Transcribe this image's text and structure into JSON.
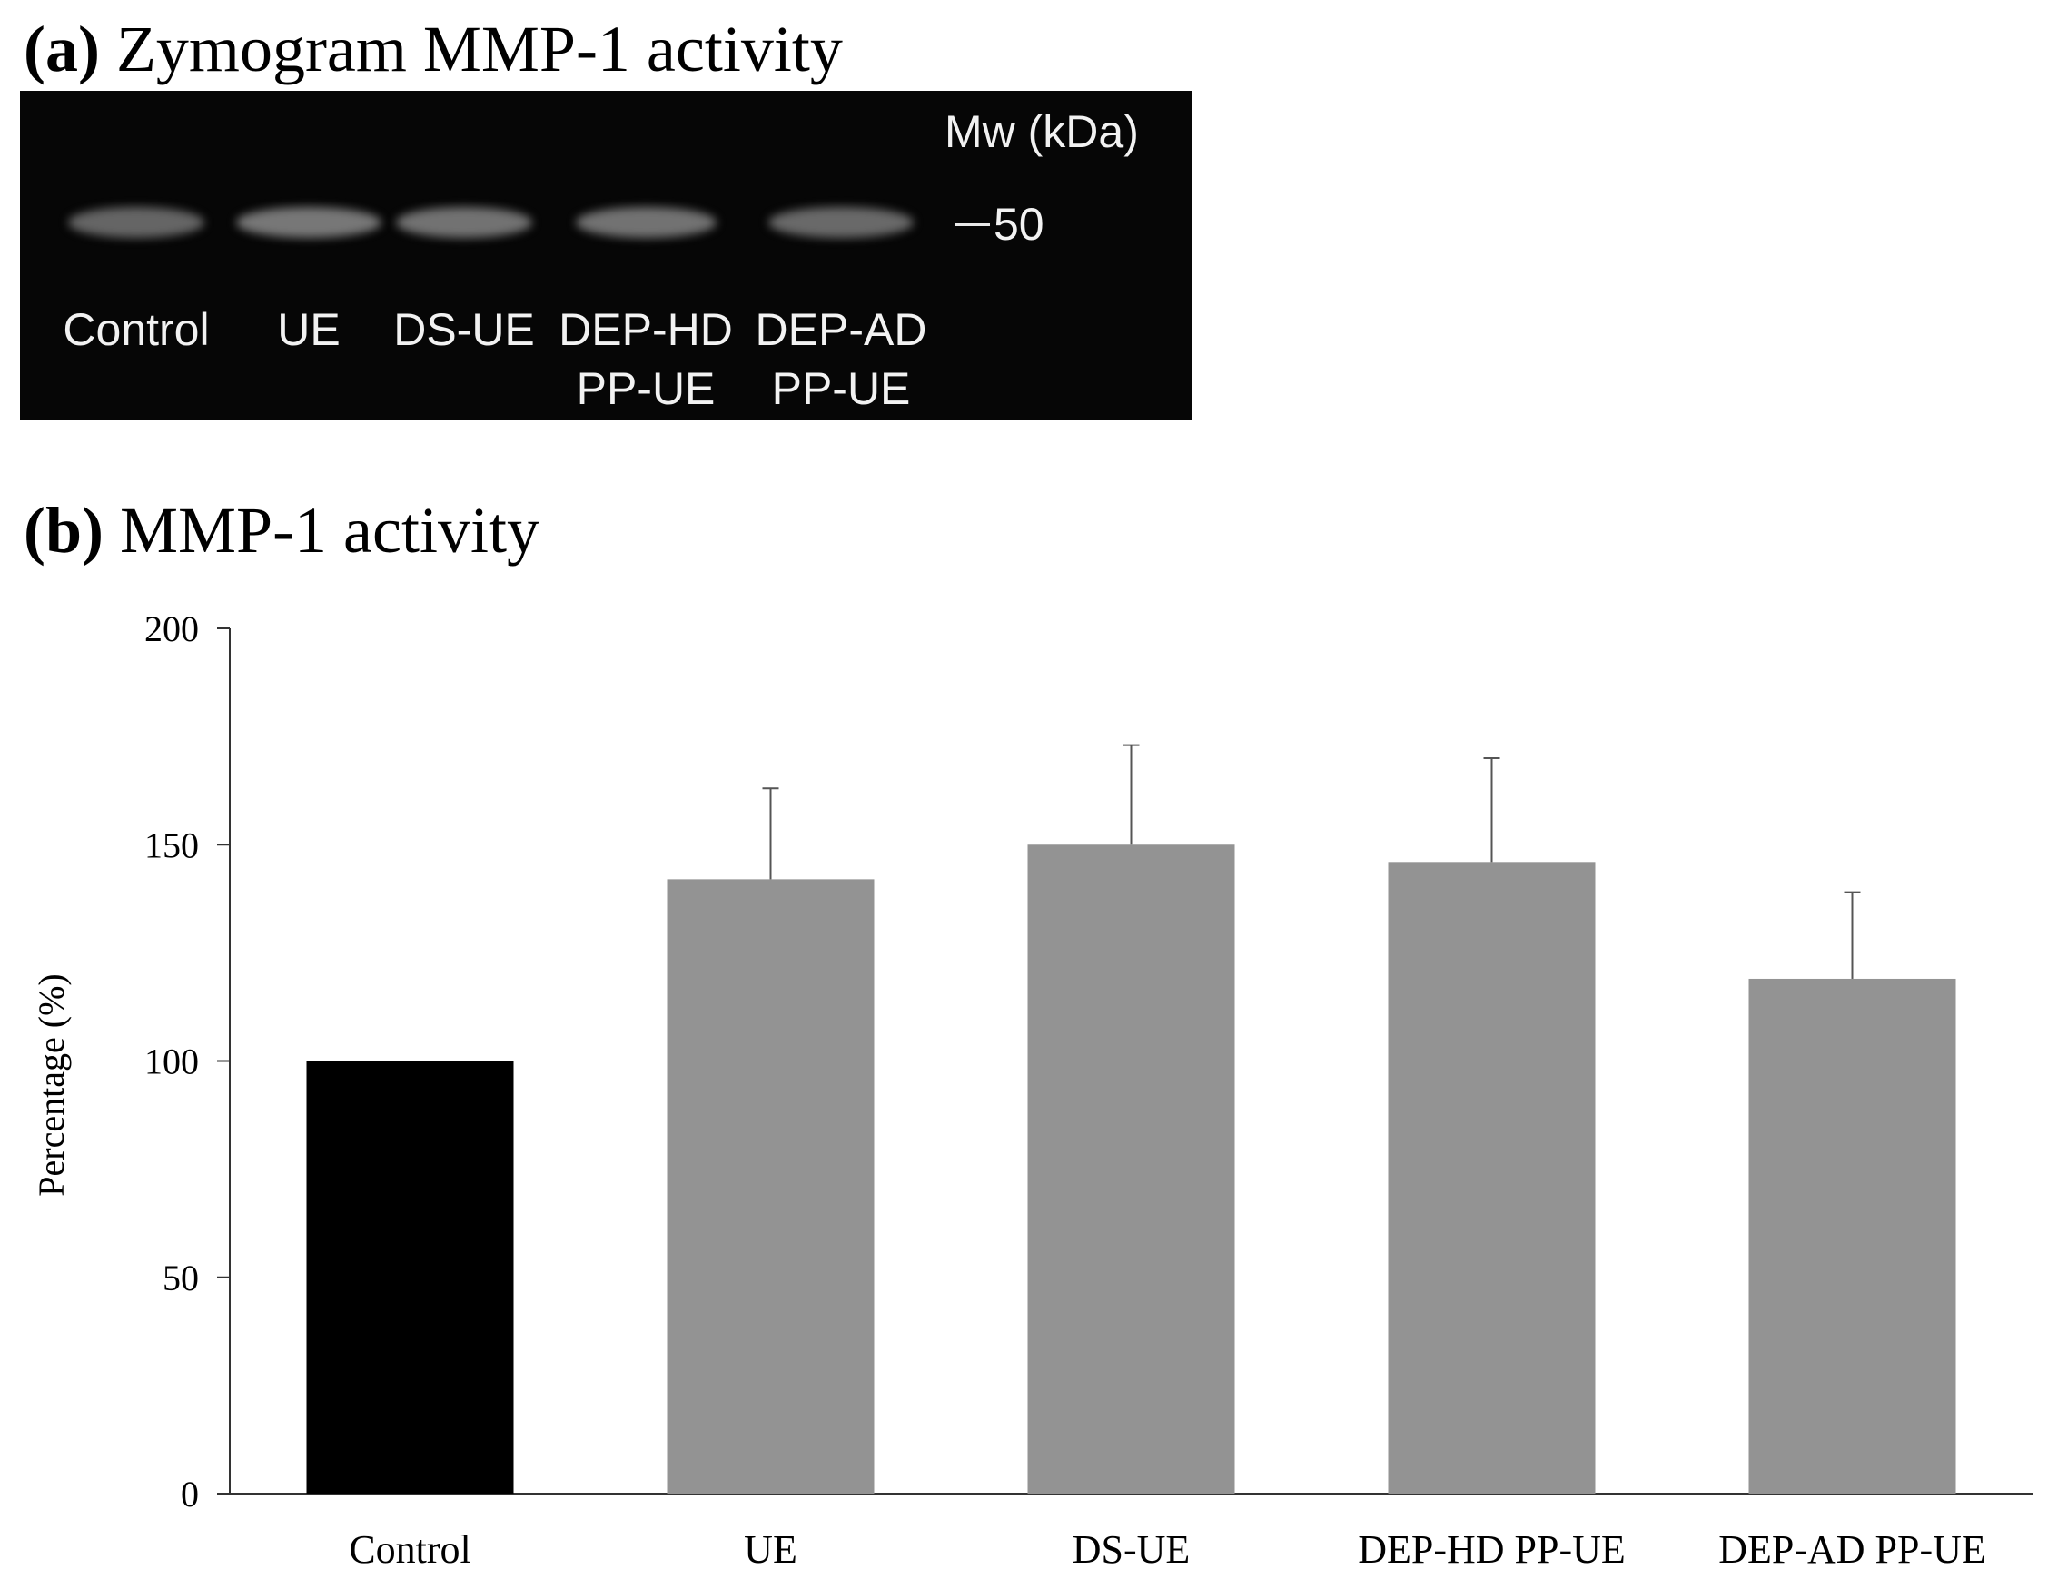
{
  "panel_a": {
    "label": "(a)",
    "title": "Zymogram MMP-1 activity",
    "mw_label": "Mw (kDa)",
    "mw_marker": "50",
    "lanes": [
      {
        "line1": "Control",
        "line2": "",
        "intensity": 0.45
      },
      {
        "line1": "UE",
        "line2": "",
        "intensity": 0.65
      },
      {
        "line1": "DS-UE",
        "line2": "",
        "intensity": 0.6
      },
      {
        "line1": "DEP-HD",
        "line2": "PP-UE",
        "intensity": 0.6
      },
      {
        "line1": "DEP-AD",
        "line2": "PP-UE",
        "intensity": 0.5
      }
    ]
  },
  "panel_b": {
    "label": "(b)",
    "title": "MMP-1 activity"
  },
  "chart_data": {
    "type": "bar",
    "title": "MMP-1 activity",
    "xlabel": "",
    "ylabel": "Percentage (%)",
    "ylim": [
      0,
      200
    ],
    "yticks": [
      0,
      50,
      100,
      150,
      200
    ],
    "categories": [
      "Control",
      "UE",
      "DS-UE",
      "DEP-HD PP-UE",
      "DEP-AD PP-UE"
    ],
    "values": [
      100,
      142,
      150,
      146,
      119
    ],
    "errors": [
      0,
      21,
      23,
      24,
      20
    ],
    "colors": [
      "#000000",
      "#939393",
      "#939393",
      "#939393",
      "#939393"
    ],
    "grid": false
  }
}
